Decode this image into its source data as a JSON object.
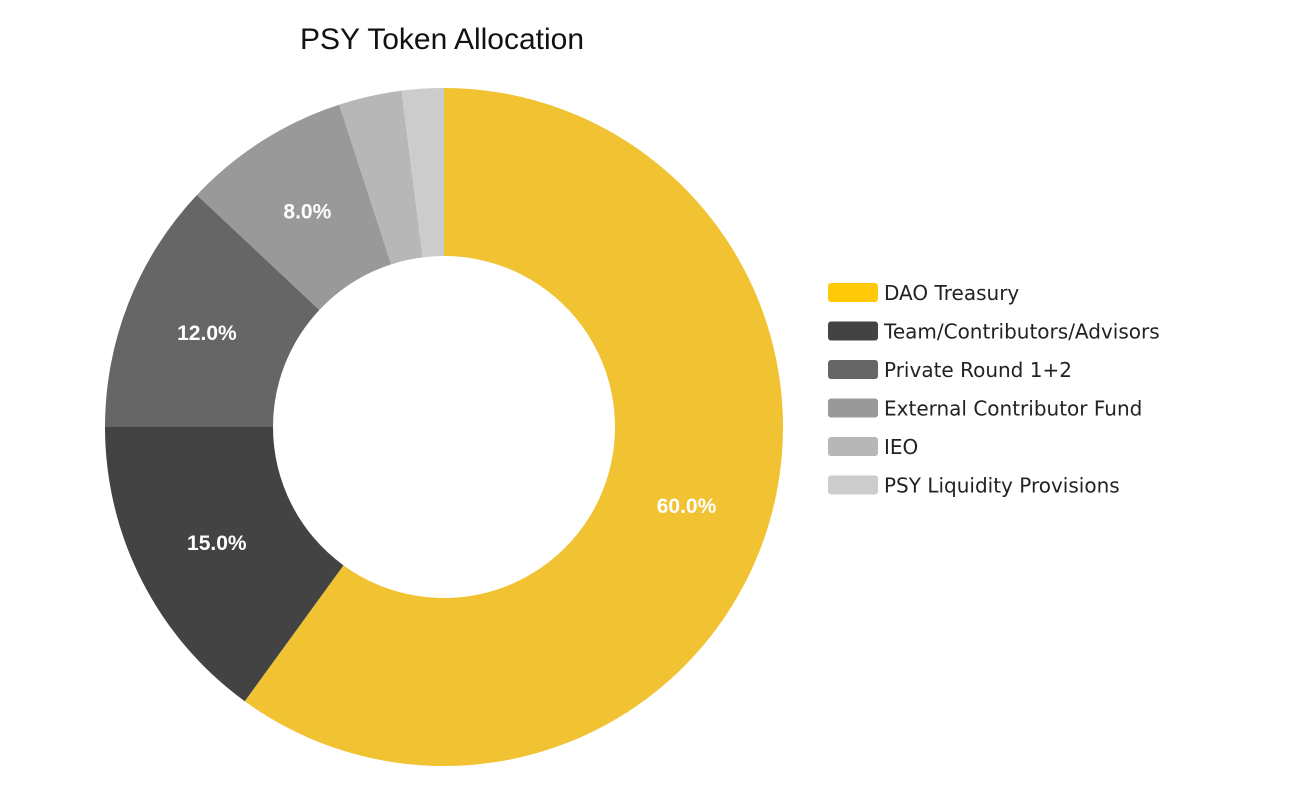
{
  "chart_data": {
    "type": "pie",
    "title": "PSY Token Allocation",
    "legend_position": "right",
    "donut": true,
    "slices": [
      {
        "label": "DAO Treasury",
        "value": 60.0,
        "display": "60.0%",
        "color": "#F1C232",
        "legend_color": "#FFC907"
      },
      {
        "label": "Team/Contributors/Advisors",
        "value": 15.0,
        "display": "15.0%",
        "color": "#434343",
        "legend_color": "#434343"
      },
      {
        "label": "Private Round 1+2",
        "value": 12.0,
        "display": "12.0%",
        "color": "#666666",
        "legend_color": "#666666"
      },
      {
        "label": "External Contributor Fund",
        "value": 8.0,
        "display": "8.0%",
        "color": "#999999",
        "legend_color": "#999999"
      },
      {
        "label": "IEO",
        "value": 3.0,
        "display": "",
        "color": "#B7B7B7",
        "legend_color": "#B7B7B7"
      },
      {
        "label": "PSY Liquidity Provisions",
        "value": 2.0,
        "display": "",
        "color": "#CCCCCC",
        "legend_color": "#CCCCCC"
      }
    ]
  }
}
